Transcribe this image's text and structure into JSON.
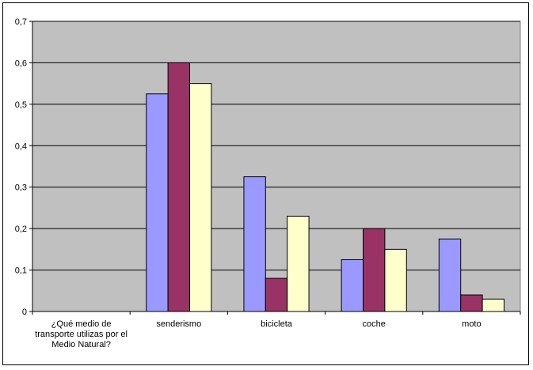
{
  "chart_data": {
    "type": "bar",
    "categories": [
      "¿Qué medio de transporte utilizas por el Medio Natural?",
      "senderismo",
      "bicicleta",
      "coche",
      "moto"
    ],
    "category_label_lines": [
      [
        "¿Qué medio de",
        "transporte utilizas por el",
        "Medio Natural?"
      ],
      [
        "senderismo"
      ],
      [
        "bicicleta"
      ],
      [
        "coche"
      ],
      [
        "moto"
      ]
    ],
    "series": [
      {
        "color": "#9999ff",
        "values": [
          null,
          0.525,
          0.325,
          0.125,
          0.175
        ]
      },
      {
        "color": "#993366",
        "values": [
          null,
          0.6,
          0.08,
          0.2,
          0.04
        ]
      },
      {
        "color": "#ffffcc",
        "values": [
          null,
          0.55,
          0.23,
          0.15,
          0.03
        ]
      }
    ],
    "ylim": [
      0,
      0.7
    ],
    "yticks": [
      0,
      0.1,
      0.2,
      0.3,
      0.4,
      0.5,
      0.6,
      0.7
    ],
    "ytick_labels": [
      "0",
      "0,1",
      "0,2",
      "0,3",
      "0,4",
      "0,5",
      "0,6",
      "0,7"
    ],
    "title": "",
    "xlabel": "",
    "ylabel": "",
    "grid": true,
    "legend": "none",
    "plot_background": "#c0c0c0"
  }
}
